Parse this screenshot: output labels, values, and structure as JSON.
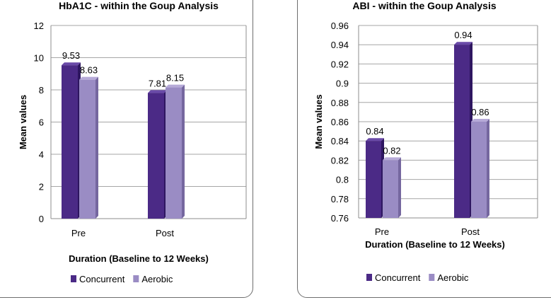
{
  "colors": {
    "concurrent_front": "#4b2a86",
    "concurrent_side": "#2e1660",
    "concurrent_top": "#6a4aa8",
    "aerobic_front": "#9a8cc4",
    "aerobic_side": "#75679f",
    "aerobic_top": "#b6aad8",
    "gridline": "#a6a6a6"
  },
  "chart_data": [
    {
      "type": "bar",
      "title": "HbA1C  - within the Goup Analysis",
      "xlabel": "Duration (Baseline to 12 Weeks)",
      "ylabel": "Mean values",
      "categories": [
        "Pre",
        "Post"
      ],
      "ylim": [
        0,
        12
      ],
      "yticks": [
        0,
        2,
        4,
        6,
        8,
        10,
        12
      ],
      "ytick_labels": [
        "0",
        "2",
        "4",
        "6",
        "8",
        "10",
        "12"
      ],
      "grid": true,
      "legend_position": "bottom",
      "series": [
        {
          "name": "Concurrent",
          "values": [
            9.53,
            7.81
          ],
          "labels": [
            "9.53",
            "7.81"
          ]
        },
        {
          "name": "Aerobic",
          "values": [
            8.63,
            8.15
          ],
          "labels": [
            "8.63",
            "8.15"
          ]
        }
      ]
    },
    {
      "type": "bar",
      "title": "ABI  - within the Goup Analysis",
      "xlabel": "Duration (Baseline to 12 Weeks)",
      "ylabel": "Mean values",
      "categories": [
        "Pre",
        "Post"
      ],
      "ylim": [
        0.76,
        0.96
      ],
      "yticks": [
        0.76,
        0.78,
        0.8,
        0.82,
        0.84,
        0.86,
        0.88,
        0.9,
        0.92,
        0.94,
        0.96
      ],
      "ytick_labels": [
        "0.76",
        "0.78",
        "0.8",
        "0.82",
        "0.84",
        "0.86",
        "0.88",
        "0.9",
        "0.92",
        "0.94",
        "0.96"
      ],
      "grid": true,
      "legend_position": "bottom",
      "series": [
        {
          "name": "Concurrent",
          "values": [
            0.84,
            0.94
          ],
          "labels": [
            "0.84",
            "0.94"
          ]
        },
        {
          "name": "Aerobic",
          "values": [
            0.82,
            0.86
          ],
          "labels": [
            "0.82",
            "0.86"
          ]
        }
      ]
    }
  ]
}
